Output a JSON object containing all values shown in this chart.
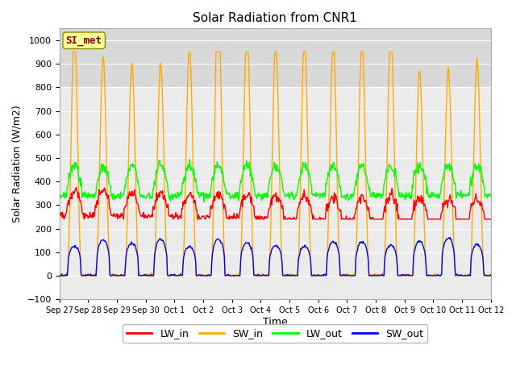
{
  "title": "Solar Radiation from CNR1",
  "xlabel": "Time",
  "ylabel": "Solar Radiation (W/m2)",
  "ylim": [
    -100,
    1050
  ],
  "yticks": [
    -100,
    0,
    100,
    200,
    300,
    400,
    500,
    600,
    700,
    800,
    900,
    1000
  ],
  "fig_bg_color": "#ffffff",
  "plot_bg_color": "#ffffff",
  "band_color_light": "#ebebeb",
  "band_color_dark": "#d8d8d8",
  "series_colors": {
    "LW_in": "#ff0000",
    "SW_in": "#ffaa00",
    "LW_out": "#00ff00",
    "SW_out": "#0000ff"
  },
  "annotation_text": "SI_met",
  "annotation_color": "#880000",
  "annotation_bg": "#ffff99",
  "annotation_border": "#888800",
  "n_days": 15,
  "dt_hours": 0.5,
  "x_tick_labels": [
    "Sep 27",
    "Sep 28",
    "Sep 29",
    "Sep 30",
    "Oct 1",
    "Oct 2",
    "Oct 3",
    "Oct 4",
    "Oct 5",
    "Oct 6",
    "Oct 7",
    "Oct 8",
    "Oct 9",
    "Oct 10",
    "Oct 11",
    "Oct 12"
  ],
  "linewidth": 1.0,
  "seed": 12345
}
